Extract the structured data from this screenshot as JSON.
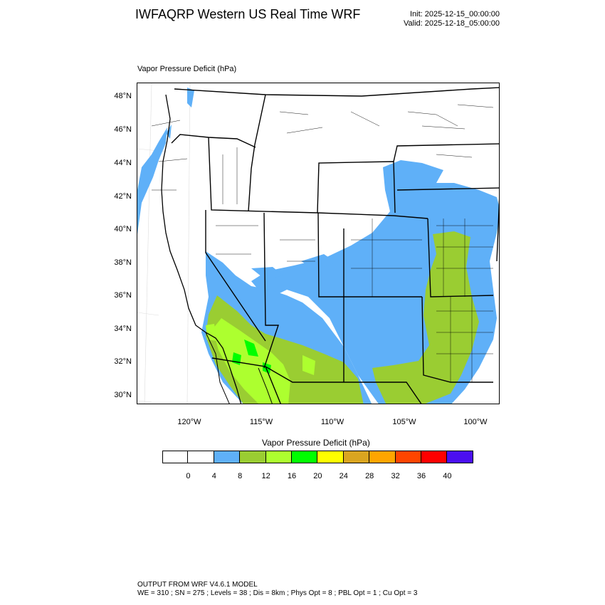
{
  "header": {
    "title": "IWFAQRP Western US Real Time WRF",
    "init": "Init: 2025-12-15_00:00:00",
    "valid": "Valid: 2025-12-18_05:00:00"
  },
  "panel": {
    "title": "Vapor Pressure Deficit   (hPa)"
  },
  "map": {
    "lat_labels": [
      "48°N",
      "46°N",
      "44°N",
      "42°N",
      "40°N",
      "38°N",
      "36°N",
      "34°N",
      "32°N",
      "30°N"
    ],
    "lon_labels": [
      "120°W",
      "115°W",
      "110°W",
      "105°W",
      "100°W"
    ],
    "extent": {
      "lon_min": -123.6,
      "lon_max": -98.4,
      "lat_min": 29.4,
      "lat_max": 48.9
    },
    "field_regions": [
      {
        "name": "Pacific coast fringe",
        "level": "4-8"
      },
      {
        "name": "Great Plains and eastern Colorado",
        "level": "4-8"
      },
      {
        "name": "Southern Great Basin and Arizona",
        "level": "4-8"
      },
      {
        "name": "Southwest deserts",
        "level": "8-12"
      },
      {
        "name": "Kansas and Oklahoma",
        "level": "8-12"
      },
      {
        "name": "Colorado River valley and Sonora",
        "level": "12-16"
      },
      {
        "name": "Lower Colorado River hot spots",
        "level": "16-20"
      }
    ]
  },
  "legend": {
    "title": "Vapor Pressure Deficit  (hPa)",
    "colors": [
      "#ffffff",
      "#ffffff",
      "#5fb0f8",
      "#9acd32",
      "#adff2f",
      "#00ff00",
      "#ffff00",
      "#daa520",
      "#ffa500",
      "#ff4500",
      "#ff0000",
      "#4b0ff0"
    ],
    "labels": [
      "0",
      "4",
      "8",
      "12",
      "16",
      "20",
      "24",
      "28",
      "32",
      "36",
      "40"
    ]
  },
  "footer": {
    "line1": "OUTPUT FROM WRF V4.6.1 MODEL",
    "line2": "WE = 310 ; SN = 275 ; Levels = 38 ; Dis = 8km ; Phys Opt = 8 ; PBL Opt = 1 ; Cu Opt = 3"
  }
}
